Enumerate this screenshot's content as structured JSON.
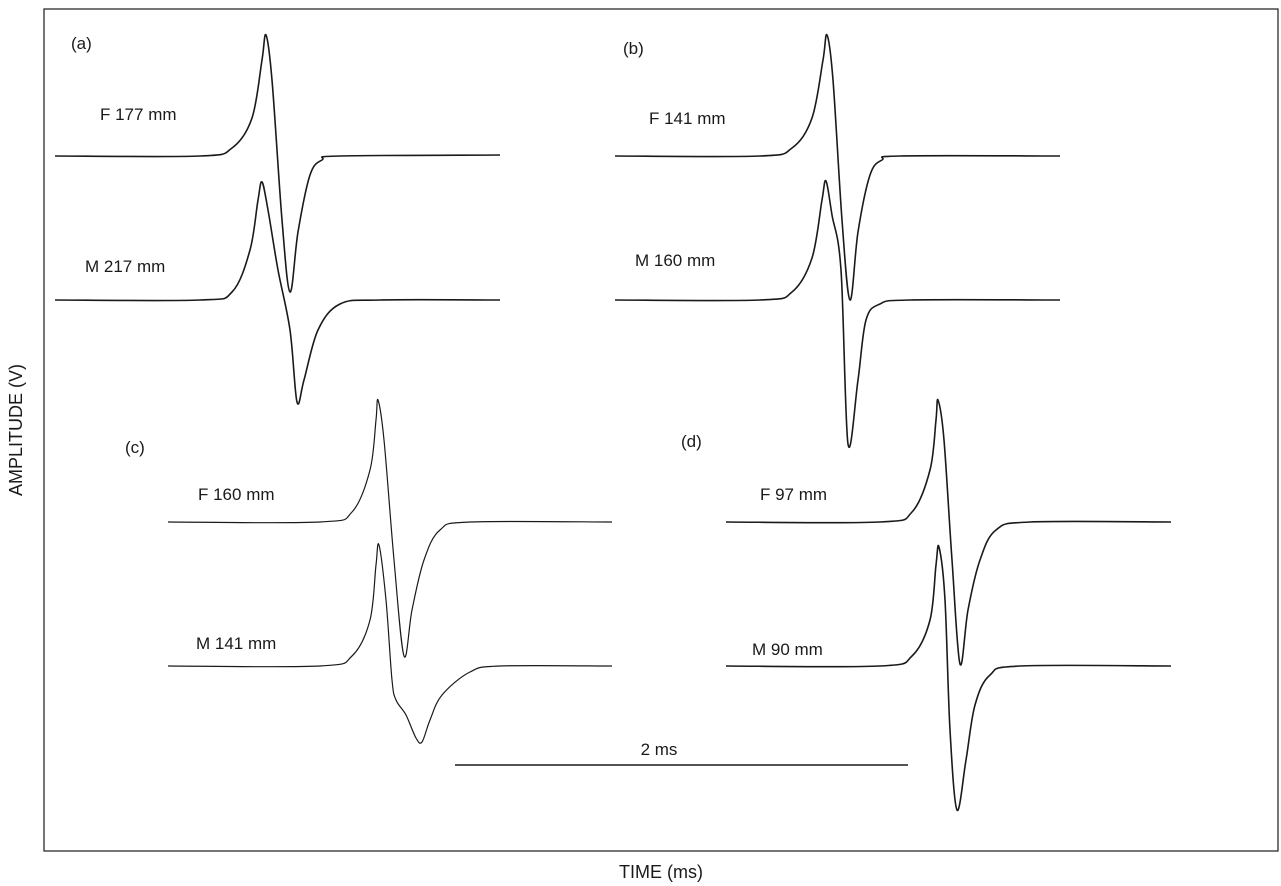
{
  "axis": {
    "xlabel": "TIME (ms)",
    "ylabel": "AMPLITUDE (V)"
  },
  "scale_bar": {
    "label": "2 ms"
  },
  "panels": [
    {
      "id": "(a)",
      "traces": [
        {
          "label": "F 177 mm",
          "shape": "F"
        },
        {
          "label": "M 217 mm",
          "shape": "Ma"
        }
      ]
    },
    {
      "id": "(b)",
      "traces": [
        {
          "label": "F 141 mm",
          "shape": "F"
        },
        {
          "label": "M 160 mm",
          "shape": "Mb"
        }
      ]
    },
    {
      "id": "(c)",
      "traces": [
        {
          "label": "F 160 mm",
          "shape": "F"
        },
        {
          "label": "M 141 mm",
          "shape": "Mc"
        }
      ]
    },
    {
      "id": "(d)",
      "traces": [
        {
          "label": "F 97 mm",
          "shape": "F"
        },
        {
          "label": "M 90 mm",
          "shape": "Mb"
        }
      ]
    }
  ]
}
